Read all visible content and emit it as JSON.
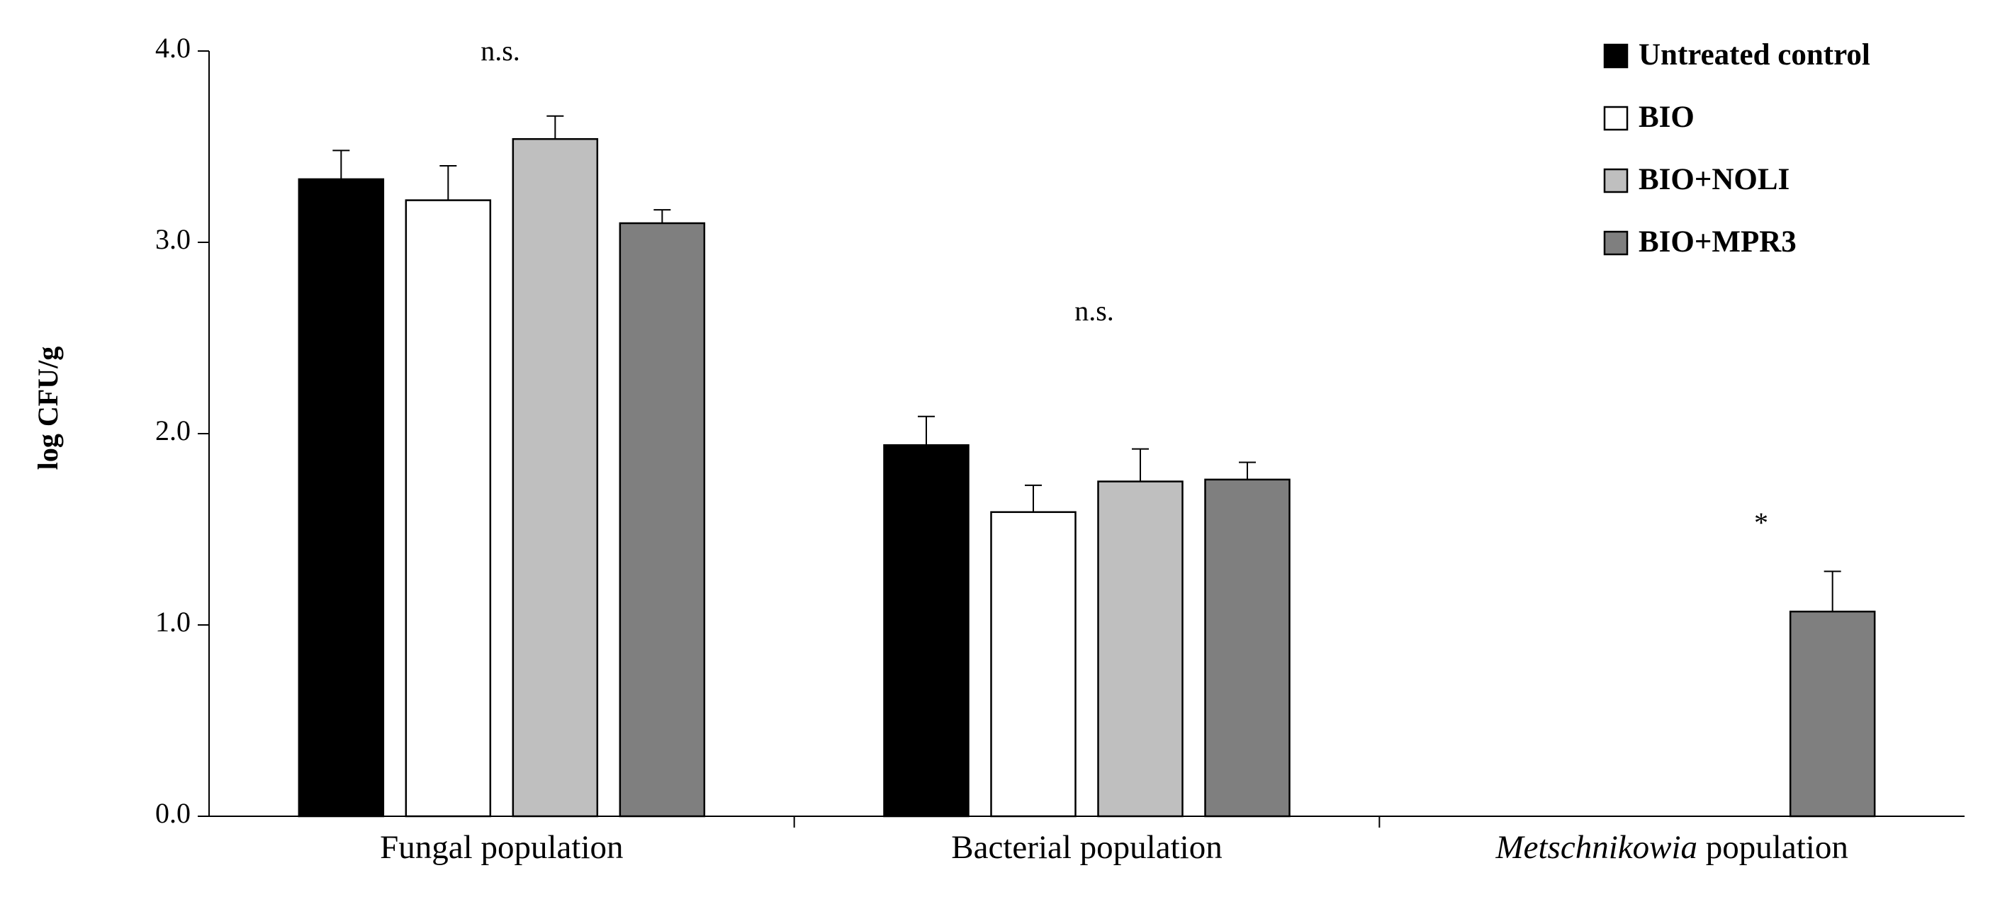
{
  "chart_data": {
    "type": "bar",
    "ylabel": "log CFU/g",
    "categories": [
      "Fungal population",
      "Bacterial population",
      "Metschnikowia population"
    ],
    "series": [
      {
        "name": "Untreated control",
        "color": "#000000",
        "values": [
          3.33,
          1.94,
          0
        ],
        "errors": [
          0.15,
          0.15,
          0
        ]
      },
      {
        "name": "BIO",
        "color": "#ffffff",
        "values": [
          3.22,
          1.59,
          0
        ],
        "errors": [
          0.18,
          0.14,
          0
        ]
      },
      {
        "name": "BIO+NOLI",
        "color": "#bfbfbf",
        "values": [
          3.54,
          1.75,
          0
        ],
        "errors": [
          0.12,
          0.17,
          0
        ]
      },
      {
        "name": "BIO+MPR3",
        "color": "#7f7f7f",
        "values": [
          3.1,
          1.76,
          1.07
        ],
        "errors": [
          0.07,
          0.09,
          0.21
        ]
      }
    ],
    "annotations": [
      "n.s.",
      "n.s.",
      "*"
    ],
    "ylim": [
      0,
      4
    ],
    "yticks": [
      {
        "value": 0,
        "label": "0.0"
      },
      {
        "value": 1,
        "label": "1.0"
      },
      {
        "value": 2,
        "label": "2.0"
      },
      {
        "value": 3,
        "label": "3.0"
      },
      {
        "value": 4,
        "label": "4.0"
      }
    ],
    "legend": "upper right"
  }
}
